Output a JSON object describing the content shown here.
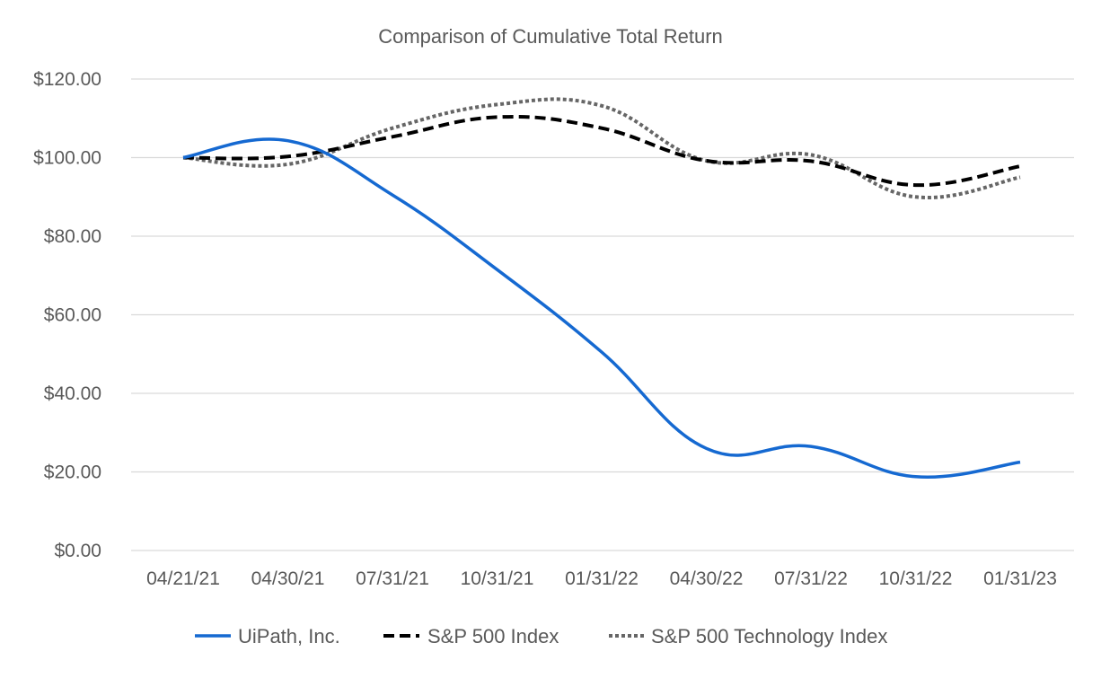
{
  "chart_data": {
    "type": "line",
    "title": "Comparison of Cumulative Total Return",
    "xlabel": "",
    "ylabel": "",
    "categories": [
      "04/21/21",
      "04/30/21",
      "07/31/21",
      "10/31/21",
      "01/31/22",
      "04/30/22",
      "07/31/22",
      "10/31/22",
      "01/31/23"
    ],
    "y_tick_labels": [
      "$0.00",
      "$20.00",
      "$40.00",
      "$60.00",
      "$80.00",
      "$100.00",
      "$120.00"
    ],
    "y_ticks": [
      0,
      20,
      40,
      60,
      80,
      100,
      120
    ],
    "ylim": [
      0,
      120
    ],
    "grid": "horizontal",
    "legend_position": "bottom",
    "series": [
      {
        "name": "UiPath, Inc.",
        "color": "#1569d1",
        "style": "solid",
        "values": [
          100.0,
          104.3,
          90.5,
          71.5,
          50.5,
          26.0,
          26.5,
          18.8,
          22.5
        ]
      },
      {
        "name": "S&P 500 Index",
        "color": "#000000",
        "style": "dashed",
        "values": [
          100.0,
          100.3,
          105.3,
          110.3,
          107.5,
          99.2,
          99.1,
          93.0,
          97.8
        ]
      },
      {
        "name": "S&P 500 Technology Index",
        "color": "#666666",
        "style": "dotted",
        "values": [
          100.0,
          98.3,
          107.5,
          113.5,
          113.2,
          99.2,
          100.7,
          90.0,
          95.0
        ]
      }
    ]
  }
}
